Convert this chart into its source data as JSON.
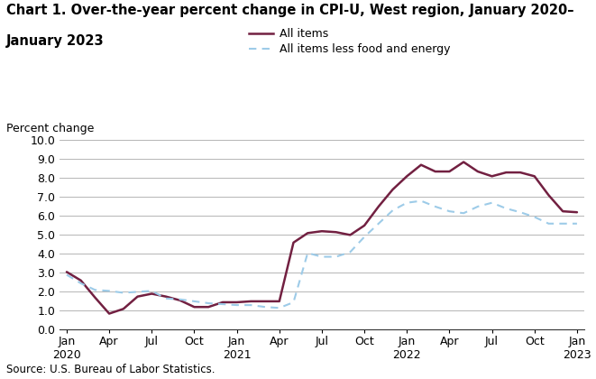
{
  "title_line1": "Chart 1. Over-the-year percent change in CPI-U, West region, January 2020–",
  "title_line2": "January 2023",
  "ylabel": "Percent change",
  "source": "Source: U.S. Bureau of Labor Statistics.",
  "ylim": [
    0.0,
    10.0
  ],
  "yticks": [
    0.0,
    1.0,
    2.0,
    3.0,
    4.0,
    5.0,
    6.0,
    7.0,
    8.0,
    9.0,
    10.0
  ],
  "all_items": [
    3.05,
    2.6,
    1.7,
    0.85,
    1.1,
    1.75,
    1.9,
    1.75,
    1.55,
    1.2,
    1.2,
    1.45,
    1.45,
    1.5,
    1.5,
    1.5,
    4.6,
    5.1,
    5.2,
    5.15,
    5.0,
    5.5,
    6.5,
    7.4,
    8.1,
    8.7,
    8.35,
    8.35,
    8.85,
    8.35,
    8.1,
    8.3,
    8.3,
    8.1,
    7.1,
    6.25,
    6.2
  ],
  "all_items_less": [
    2.9,
    2.45,
    2.1,
    2.05,
    1.95,
    2.0,
    2.05,
    1.65,
    1.6,
    1.5,
    1.4,
    1.35,
    1.3,
    1.3,
    1.2,
    1.15,
    1.45,
    4.05,
    3.85,
    3.85,
    4.1,
    4.9,
    5.6,
    6.3,
    6.7,
    6.8,
    6.5,
    6.25,
    6.15,
    6.5,
    6.7,
    6.4,
    6.2,
    5.95,
    5.6,
    5.6,
    5.6
  ],
  "all_items_color": "#722041",
  "all_items_less_color": "#9DCBE8",
  "background_color": "#ffffff",
  "grid_color": "#aaaaaa",
  "tick_label_fontsize": 9,
  "axis_label_fontsize": 9,
  "title_fontsize": 10.5,
  "legend_fontsize": 9,
  "xtick_labels": [
    "Jan\n2020",
    "Apr",
    "Jul",
    "Oct",
    "Jan\n2021",
    "Apr",
    "Jul",
    "Oct",
    "Jan\n2022",
    "Apr",
    "Jul",
    "Oct",
    "Jan\n2023"
  ],
  "xtick_positions": [
    0,
    3,
    6,
    9,
    12,
    15,
    18,
    21,
    24,
    27,
    30,
    33,
    36
  ]
}
